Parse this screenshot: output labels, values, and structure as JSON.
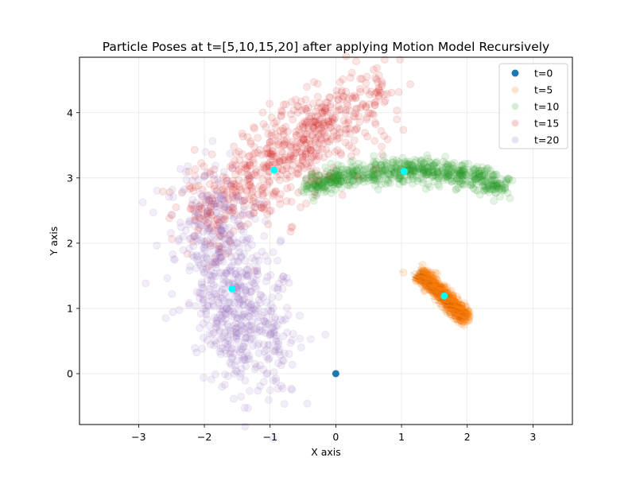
{
  "chart_data": {
    "type": "scatter",
    "title": "Particle Poses at t=[5,10,15,20] after applying Motion Model Recursively",
    "xlabel": "X axis",
    "ylabel": "Y axis",
    "xlim": [
      -3.9,
      3.6
    ],
    "ylim": [
      -0.78,
      4.85
    ],
    "xticks": [
      -3,
      -2,
      -1,
      0,
      1,
      2,
      3
    ],
    "yticks": [
      0,
      1,
      2,
      3,
      4
    ],
    "grid": true,
    "legend_position": "top-right",
    "series": [
      {
        "name": "t=0",
        "color": "#1f77b4",
        "alpha": 1.0,
        "points": [
          [
            0,
            0
          ]
        ],
        "mean": [
          0,
          0
        ]
      },
      {
        "name": "t=5",
        "color": "#ff7f0e",
        "alpha": 0.15,
        "cloud": {
          "start": [
            1.3,
            1.52
          ],
          "end": [
            1.98,
            0.86
          ],
          "spread": 0.06,
          "count": 700
        },
        "outliers": [
          [
            1.03,
            1.55
          ],
          [
            1.22,
            1.42
          ]
        ],
        "mean": [
          1.65,
          1.19
        ]
      },
      {
        "name": "t=10",
        "color": "#2ca02c",
        "alpha": 0.12,
        "cloud": {
          "path": [
            [
              -0.4,
              2.86
            ],
            [
              0.1,
              3.02
            ],
            [
              0.8,
              3.12
            ],
            [
              1.4,
              3.12
            ],
            [
              2.0,
              3.02
            ],
            [
              2.6,
              2.86
            ]
          ],
          "spread": 0.1,
          "count": 700
        },
        "mean": [
          1.04,
          3.1
        ]
      },
      {
        "name": "t=15",
        "color": "#d62728",
        "alpha": 0.12,
        "cloud": {
          "path": [
            [
              -2.1,
              2.3
            ],
            [
              -1.5,
              2.75
            ],
            [
              -1.0,
              3.2
            ],
            [
              -0.5,
              3.55
            ],
            [
              0.0,
              3.85
            ],
            [
              0.8,
              4.35
            ]
          ],
          "spread": 0.33,
          "count": 700
        },
        "mean": [
          -0.94,
          3.12
        ]
      },
      {
        "name": "t=20",
        "color": "#9467bd",
        "alpha": 0.12,
        "cloud": {
          "path": [
            [
              -2.0,
              2.6
            ],
            [
              -1.7,
              1.9
            ],
            [
              -1.55,
              1.3
            ],
            [
              -1.4,
              0.7
            ],
            [
              -1.0,
              0.2
            ]
          ],
          "spread": 0.42,
          "count": 700
        },
        "mean": [
          -1.58,
          1.3
        ]
      }
    ],
    "mean_marker_color": "#00ffff"
  }
}
